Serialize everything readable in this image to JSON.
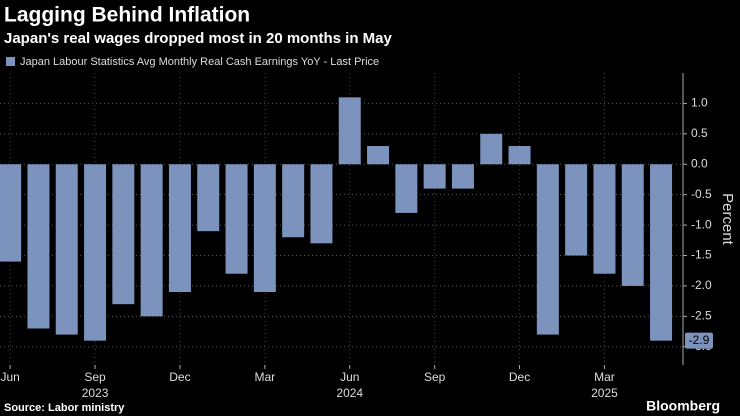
{
  "chart_data": {
    "type": "bar",
    "title": "Lagging Behind Inflation",
    "subtitle": "Japan's real wages dropped most in 20 months in May",
    "series": [
      {
        "name": "Japan Labour Statistics Avg Monthly Real Cash Earnings YoY - Last Price",
        "color": "#7b93bd",
        "values": [
          -1.6,
          -2.7,
          -2.8,
          -2.9,
          -2.3,
          -2.5,
          -2.1,
          -1.1,
          -1.8,
          -2.1,
          -1.2,
          -1.3,
          1.1,
          0.3,
          -0.8,
          -0.4,
          -0.4,
          0.5,
          0.3,
          -2.8,
          -1.5,
          -1.8,
          -2.0,
          -2.9
        ],
        "value_labels": [
          null,
          null,
          null,
          null,
          null,
          null,
          null,
          null,
          null,
          null,
          null,
          null,
          null,
          null,
          null,
          null,
          null,
          null,
          null,
          null,
          null,
          null,
          null,
          "-2.9"
        ]
      }
    ],
    "categories": [
      "Jun",
      null,
      null,
      "Sep",
      null,
      null,
      "Dec",
      null,
      null,
      "Mar",
      null,
      null,
      "Jun",
      null,
      null,
      "Sep",
      null,
      null,
      "Dec",
      null,
      null,
      "Mar",
      null,
      null
    ],
    "year_labels": [
      null,
      null,
      null,
      "2023",
      null,
      null,
      null,
      null,
      null,
      null,
      null,
      null,
      "2024",
      null,
      null,
      null,
      null,
      null,
      null,
      null,
      null,
      "2025",
      null,
      null
    ],
    "y_axis_label": "Percent",
    "ylim": [
      -3.3,
      1.5
    ],
    "yticks": [
      {
        "value": 1,
        "label": "1.0"
      },
      0.5,
      {
        "value": 0,
        "label": "0.0"
      },
      -0.5,
      {
        "value": -1,
        "label": "-1.0"
      },
      -1.5,
      {
        "value": -2,
        "label": "-2.0"
      },
      -2.5,
      {
        "value": -3,
        "label": "-3.0"
      }
    ],
    "grid": true,
    "source": "Source: Labor ministry",
    "brand": "Bloomberg"
  }
}
